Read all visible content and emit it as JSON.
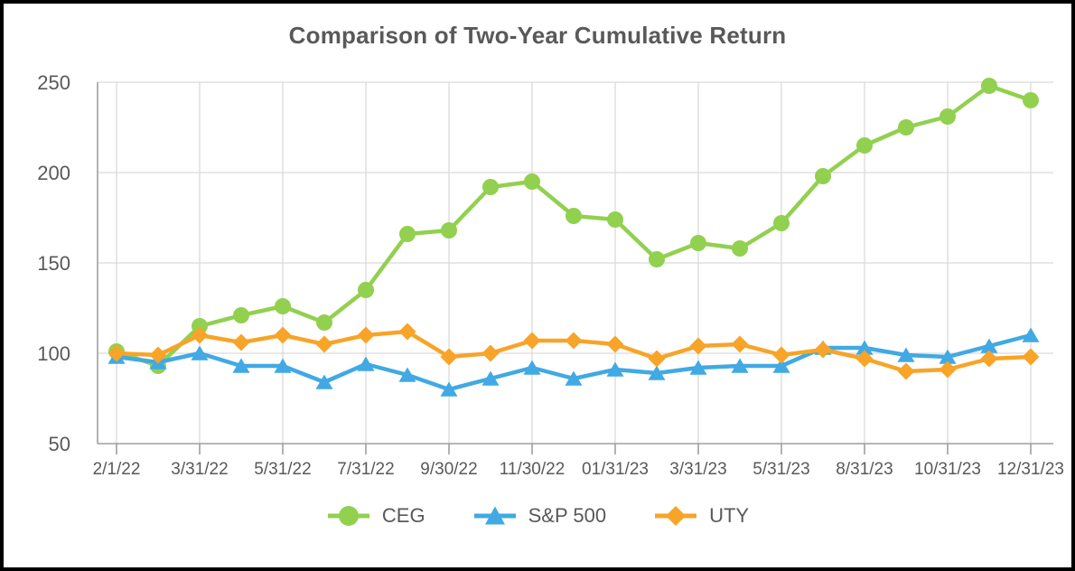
{
  "chart_data": {
    "type": "line",
    "title": "Comparison of Two-Year Cumulative Return",
    "xlabel": "",
    "ylabel": "",
    "ylim": [
      50,
      250
    ],
    "y_ticks": [
      50,
      100,
      150,
      200,
      250
    ],
    "n_points": 23,
    "x_tick_labels": [
      "2/1/22",
      "3/31/22",
      "5/31/22",
      "7/31/22",
      "9/30/22",
      "11/30/22",
      "01/31/23",
      "3/31/23",
      "5/31/23",
      "8/31/23",
      "10/31/23",
      "12/31/23"
    ],
    "x_tick_point_indices": [
      0,
      2,
      4,
      6,
      8,
      10,
      12,
      14,
      16,
      18,
      20,
      22
    ],
    "grid": true,
    "legend_position": "bottom",
    "series": [
      {
        "name": "CEG",
        "marker": "circle",
        "color": "#92d050",
        "values": [
          101,
          93,
          115,
          121,
          126,
          117,
          135,
          166,
          168,
          192,
          195,
          176,
          174,
          152,
          161,
          158,
          172,
          198,
          215,
          225,
          231,
          248,
          240
        ]
      },
      {
        "name": "S&P 500",
        "marker": "triangle",
        "color": "#41a9e3",
        "values": [
          98,
          95,
          100,
          93,
          93,
          84,
          94,
          88,
          80,
          86,
          92,
          86,
          91,
          89,
          92,
          93,
          93,
          103,
          103,
          99,
          98,
          104,
          110
        ]
      },
      {
        "name": "UTY",
        "marker": "diamond",
        "color": "#f7a428",
        "values": [
          100,
          99,
          110,
          106,
          110,
          105,
          110,
          112,
          98,
          100,
          107,
          107,
          105,
          97,
          104,
          105,
          99,
          102,
          97,
          90,
          91,
          97,
          98
        ]
      }
    ]
  },
  "colors": {
    "text": "#595959",
    "gridline": "#dadada",
    "axis": "#9e9e9e",
    "background": "#ffffff",
    "border": "#000000"
  }
}
